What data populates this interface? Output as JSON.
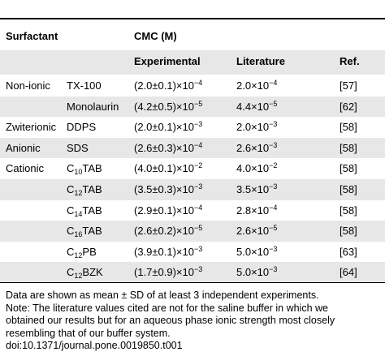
{
  "header": {
    "col_surfactant": "Surfactant",
    "col_cmc": "CMC (M)",
    "col_experimental": "Experimental",
    "col_literature": "Literature",
    "col_ref": "Ref."
  },
  "rows": [
    {
      "category": "Non-ionic",
      "name": {
        "pre": "TX-100",
        "sub": "",
        "post": ""
      },
      "exp": {
        "base": "(2.0±0.1)×10",
        "exp": "−4"
      },
      "lit": {
        "base": "2.0×10",
        "exp": "−4"
      },
      "ref": "[57]",
      "shaded": false
    },
    {
      "category": "",
      "name": {
        "pre": "Monolaurin",
        "sub": "",
        "post": ""
      },
      "exp": {
        "base": "(4.2±0.5)×10",
        "exp": "−5"
      },
      "lit": {
        "base": "4.4×10",
        "exp": "−5"
      },
      "ref": "[62]",
      "shaded": true
    },
    {
      "category": "Zwiterionic",
      "name": {
        "pre": "DDPS",
        "sub": "",
        "post": ""
      },
      "exp": {
        "base": "(2.0±0.1)×10",
        "exp": "−3"
      },
      "lit": {
        "base": "2.0×10",
        "exp": "−3"
      },
      "ref": "[58]",
      "shaded": false
    },
    {
      "category": "Anionic",
      "name": {
        "pre": "SDS",
        "sub": "",
        "post": ""
      },
      "exp": {
        "base": "(2.6±0.3)×10",
        "exp": "−4"
      },
      "lit": {
        "base": "2.6×10",
        "exp": "−3"
      },
      "ref": "[58]",
      "shaded": true
    },
    {
      "category": "Cationic",
      "name": {
        "pre": "C",
        "sub": "10",
        "post": "TAB"
      },
      "exp": {
        "base": "(4.0±0.1)×10",
        "exp": "−2"
      },
      "lit": {
        "base": "4.0×10",
        "exp": "−2"
      },
      "ref": "[58]",
      "shaded": false
    },
    {
      "category": "",
      "name": {
        "pre": "C",
        "sub": "12",
        "post": "TAB"
      },
      "exp": {
        "base": "(3.5±0.3)×10",
        "exp": "−3"
      },
      "lit": {
        "base": "3.5×10",
        "exp": "−3"
      },
      "ref": "[58]",
      "shaded": true
    },
    {
      "category": "",
      "name": {
        "pre": "C",
        "sub": "14",
        "post": "TAB"
      },
      "exp": {
        "base": "(2.9±0.1)×10",
        "exp": "−4"
      },
      "lit": {
        "base": "2.8×10",
        "exp": "−4"
      },
      "ref": "[58]",
      "shaded": false
    },
    {
      "category": "",
      "name": {
        "pre": "C",
        "sub": "16",
        "post": "TAB"
      },
      "exp": {
        "base": "(2.6±0.2)×10",
        "exp": "−5"
      },
      "lit": {
        "base": "2.6×10",
        "exp": "−5"
      },
      "ref": "[58]",
      "shaded": true
    },
    {
      "category": "",
      "name": {
        "pre": "C",
        "sub": "12",
        "post": "PB"
      },
      "exp": {
        "base": "(3.9±0.1)×10",
        "exp": "−3"
      },
      "lit": {
        "base": "5.0×10",
        "exp": "−3"
      },
      "ref": "[63]",
      "shaded": false
    },
    {
      "category": "",
      "name": {
        "pre": "C",
        "sub": "12",
        "post": "BZK"
      },
      "exp": {
        "base": "(1.7±0.9)×10",
        "exp": "−3"
      },
      "lit": {
        "base": "5.0×10",
        "exp": "−3"
      },
      "ref": "[64]",
      "shaded": true
    }
  ],
  "notes": [
    "Data are shown as mean ± SD of at least 3 independent experiments.",
    "Note: The literature values cited are not for the saline buffer in which we",
    "obtained our results but for an aqueous phase ionic strength most closely",
    "resembling that of our buffer system.",
    "doi:10.1371/journal.pone.0019850.t001"
  ]
}
